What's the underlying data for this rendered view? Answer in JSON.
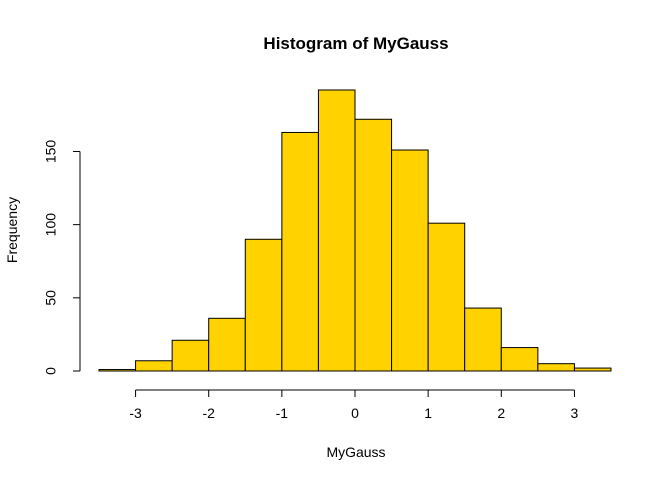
{
  "chart_data": {
    "type": "bar",
    "title": "Histogram of MyGauss",
    "xlabel": "MyGauss",
    "ylabel": "Frequency",
    "bar_color": "#FFD200",
    "bin_edges": [
      -3.5,
      -3.0,
      -2.5,
      -2.0,
      -1.5,
      -1.0,
      -0.5,
      0.0,
      0.5,
      1.0,
      1.5,
      2.0,
      2.5,
      3.0,
      3.5
    ],
    "values": [
      1,
      7,
      21,
      36,
      90,
      163,
      192,
      172,
      151,
      101,
      43,
      16,
      5,
      2
    ],
    "xlim": [
      -3.5,
      3.5
    ],
    "ylim": [
      0,
      192
    ],
    "x_ticks": [
      -3,
      -2,
      -1,
      0,
      1,
      2,
      3
    ],
    "x_tick_labels": [
      "-3",
      "-2",
      "-1",
      "0",
      "1",
      "2",
      "3"
    ],
    "y_ticks": [
      0,
      50,
      100,
      150
    ],
    "y_tick_labels": [
      "0",
      "50",
      "100",
      "150"
    ],
    "grid": false,
    "legend": "none"
  }
}
